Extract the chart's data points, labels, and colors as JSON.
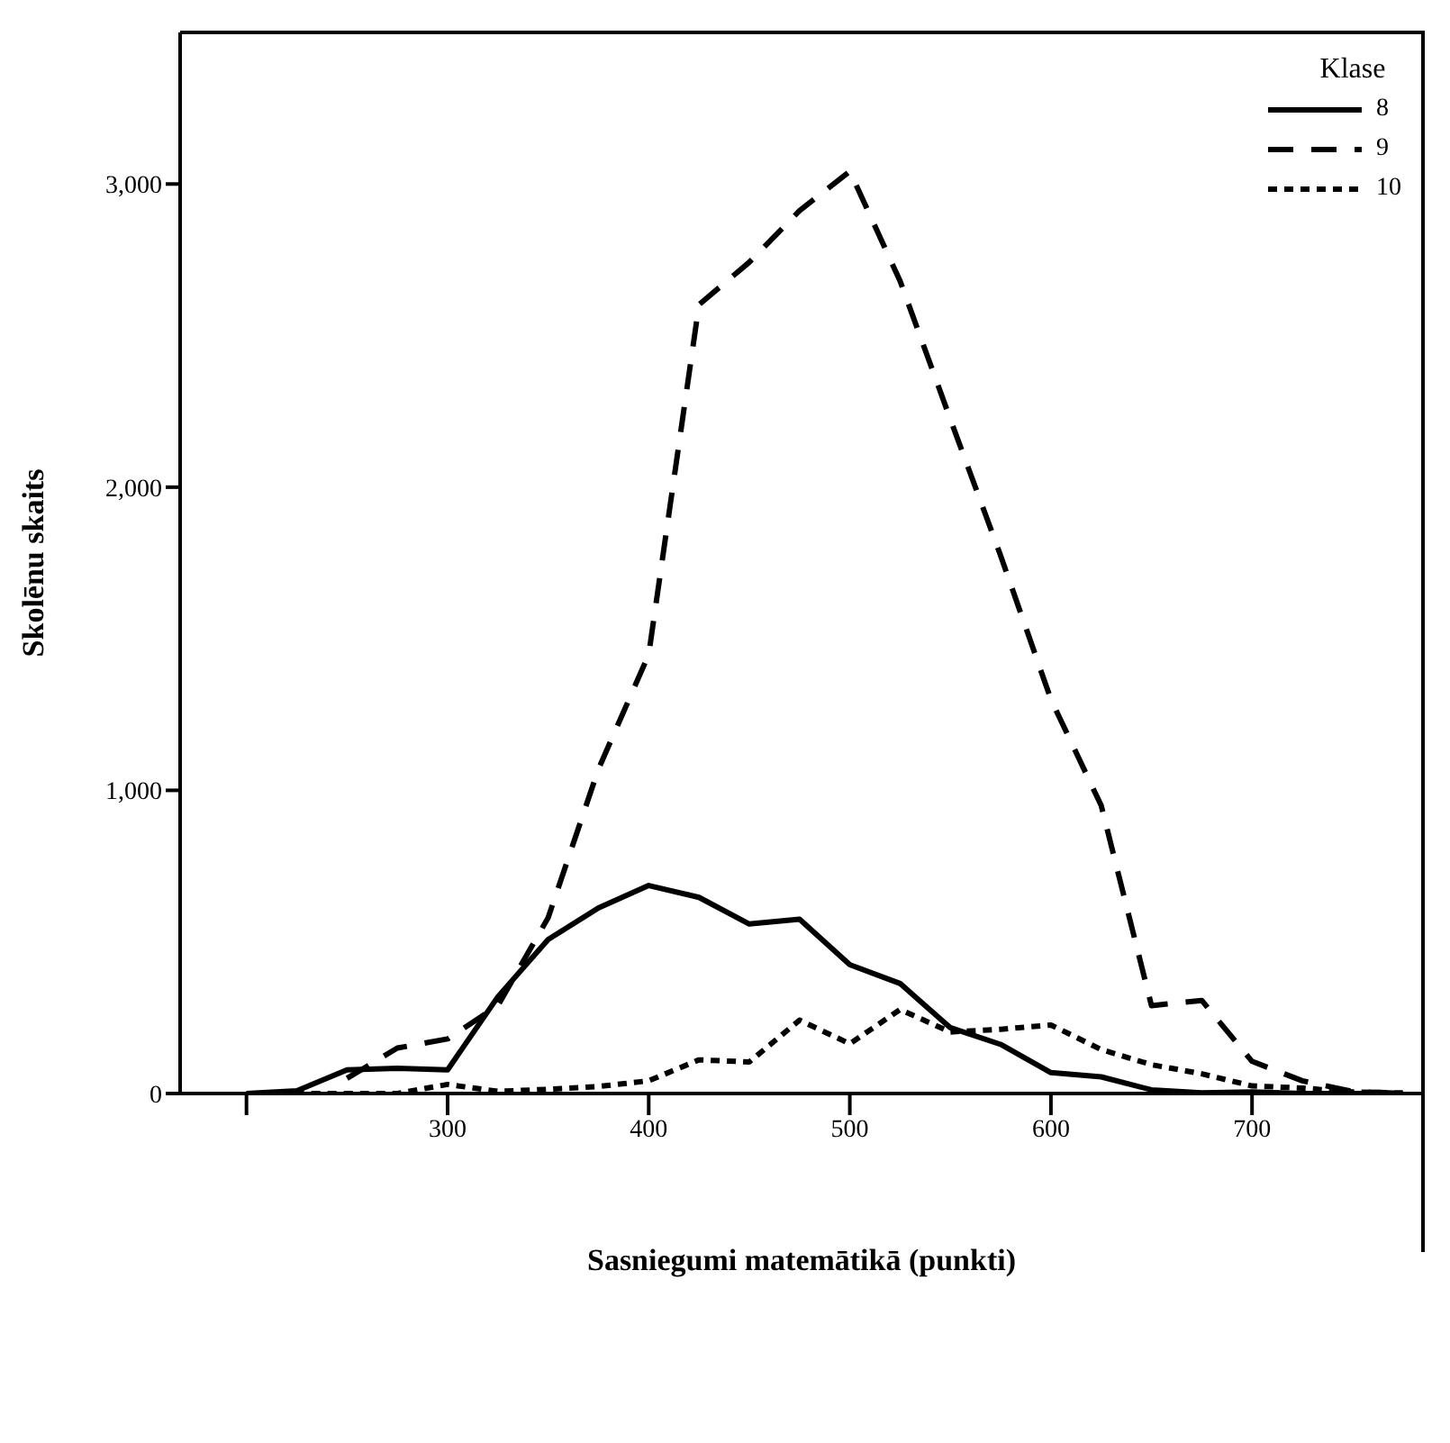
{
  "chart_data": {
    "type": "line",
    "xlabel": "Sasniegumi matemātikā  (punkti)",
    "ylabel": "Skolēnu skaits",
    "legend_title": "Klase",
    "legend": "top right",
    "marker": "none",
    "x": [
      200,
      225,
      250,
      275,
      300,
      325,
      350,
      375,
      400,
      425,
      450,
      475,
      500,
      525,
      550,
      575,
      600,
      625,
      650,
      675,
      700,
      725,
      750,
      775
    ],
    "xlim": [
      167,
      785
    ],
    "xticks": [
      {
        "value": 200,
        "label": null
      },
      300,
      400,
      500,
      600,
      700
    ],
    "ylim": [
      0,
      3500
    ],
    "yticks": [
      0,
      {
        "value": 1000,
        "label": "1,000"
      },
      {
        "value": 2000,
        "label": "2,000"
      },
      {
        "value": 3000,
        "label": "3,000"
      }
    ],
    "series": [
      {
        "name": "8",
        "color": "#000000",
        "line_style": "solid",
        "values": [
          0,
          9,
          78,
          83,
          78,
          319,
          508,
          612,
          686,
          647,
          559,
          575,
          425,
          363,
          217,
          162,
          69,
          55,
          12,
          2,
          5,
          0,
          0,
          0
        ]
      },
      {
        "name": "9",
        "color": "#000000",
        "line_style": "dashed",
        "values": [
          null,
          null,
          50,
          150,
          180,
          290,
          580,
          1070,
          1448,
          2602,
          2742,
          2912,
          3042,
          2680,
          2224,
          1774,
          1300,
          950,
          290,
          307,
          106,
          42,
          7,
          0
        ]
      },
      {
        "name": "10",
        "color": "#000000",
        "line_style": "dotted",
        "values": [
          0,
          0,
          0,
          0,
          30,
          7,
          14,
          23,
          42,
          111,
          104,
          242,
          164,
          277,
          203,
          212,
          226,
          145,
          95,
          65,
          25,
          18,
          5,
          2
        ]
      }
    ]
  }
}
